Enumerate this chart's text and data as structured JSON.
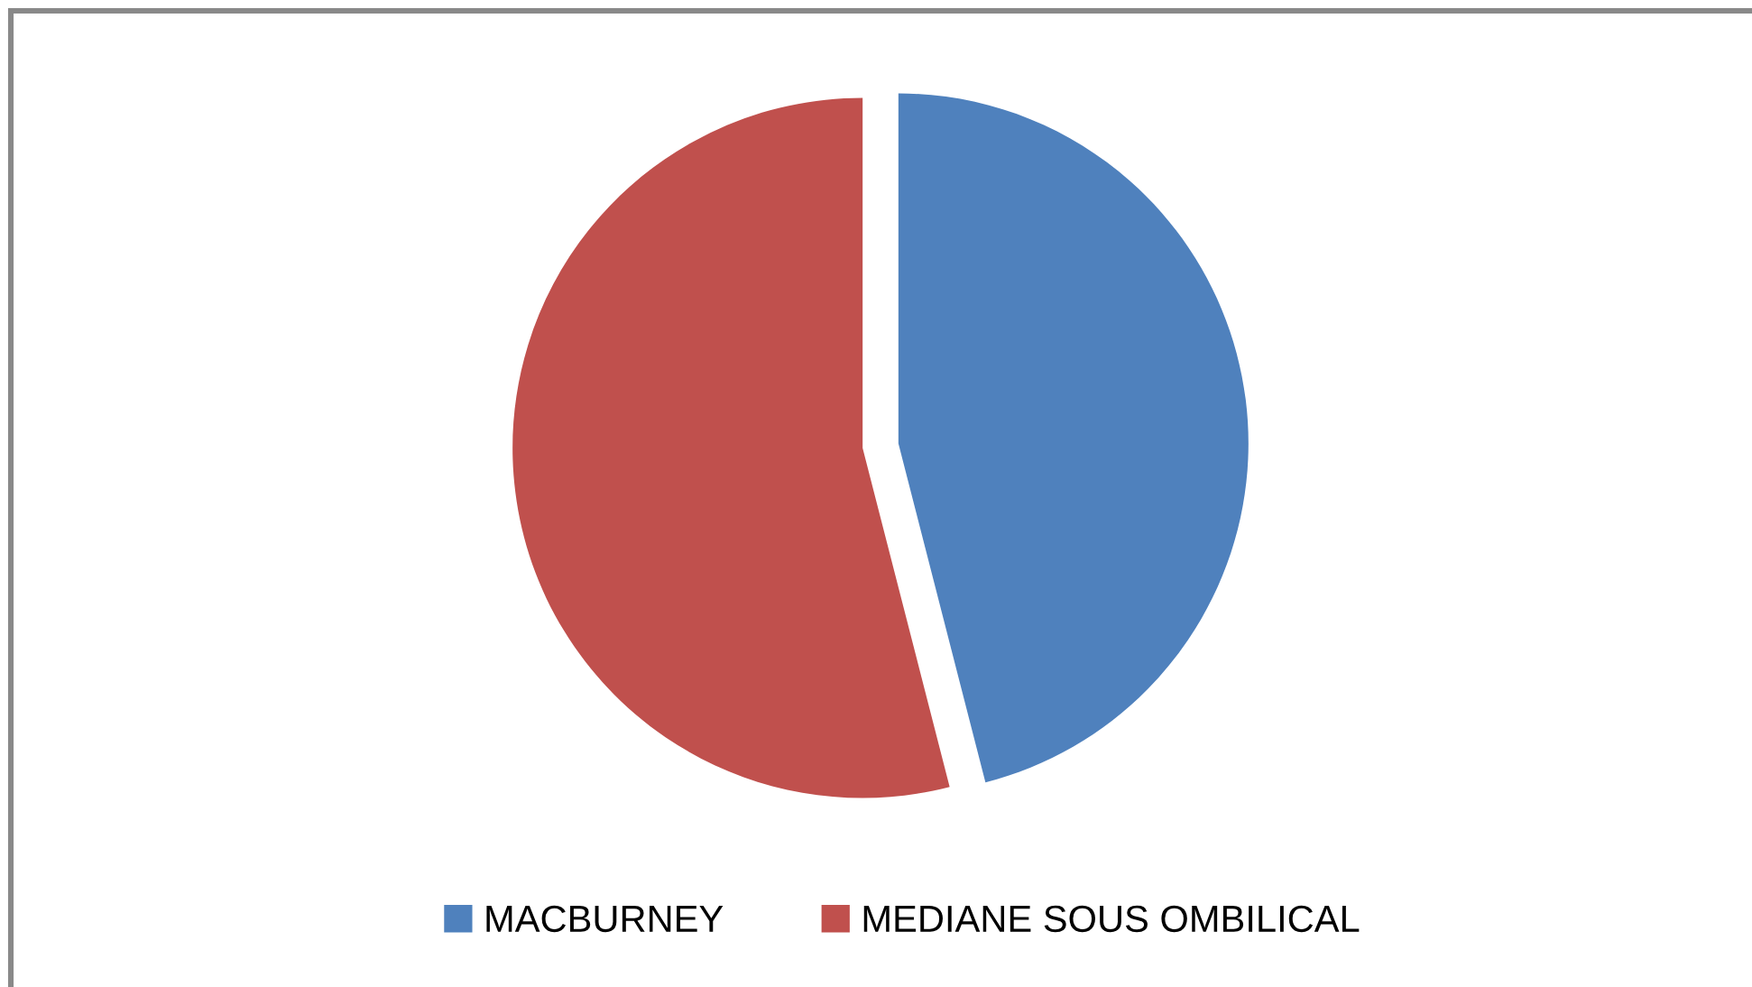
{
  "chart_data": {
    "type": "pie",
    "categories": [
      "MACBURNEY",
      "MEDIANE SOUS OMBILICAL"
    ],
    "values": [
      46,
      54
    ],
    "colors": [
      "#4f81bd",
      "#c0504d"
    ],
    "legend": "bottom"
  }
}
